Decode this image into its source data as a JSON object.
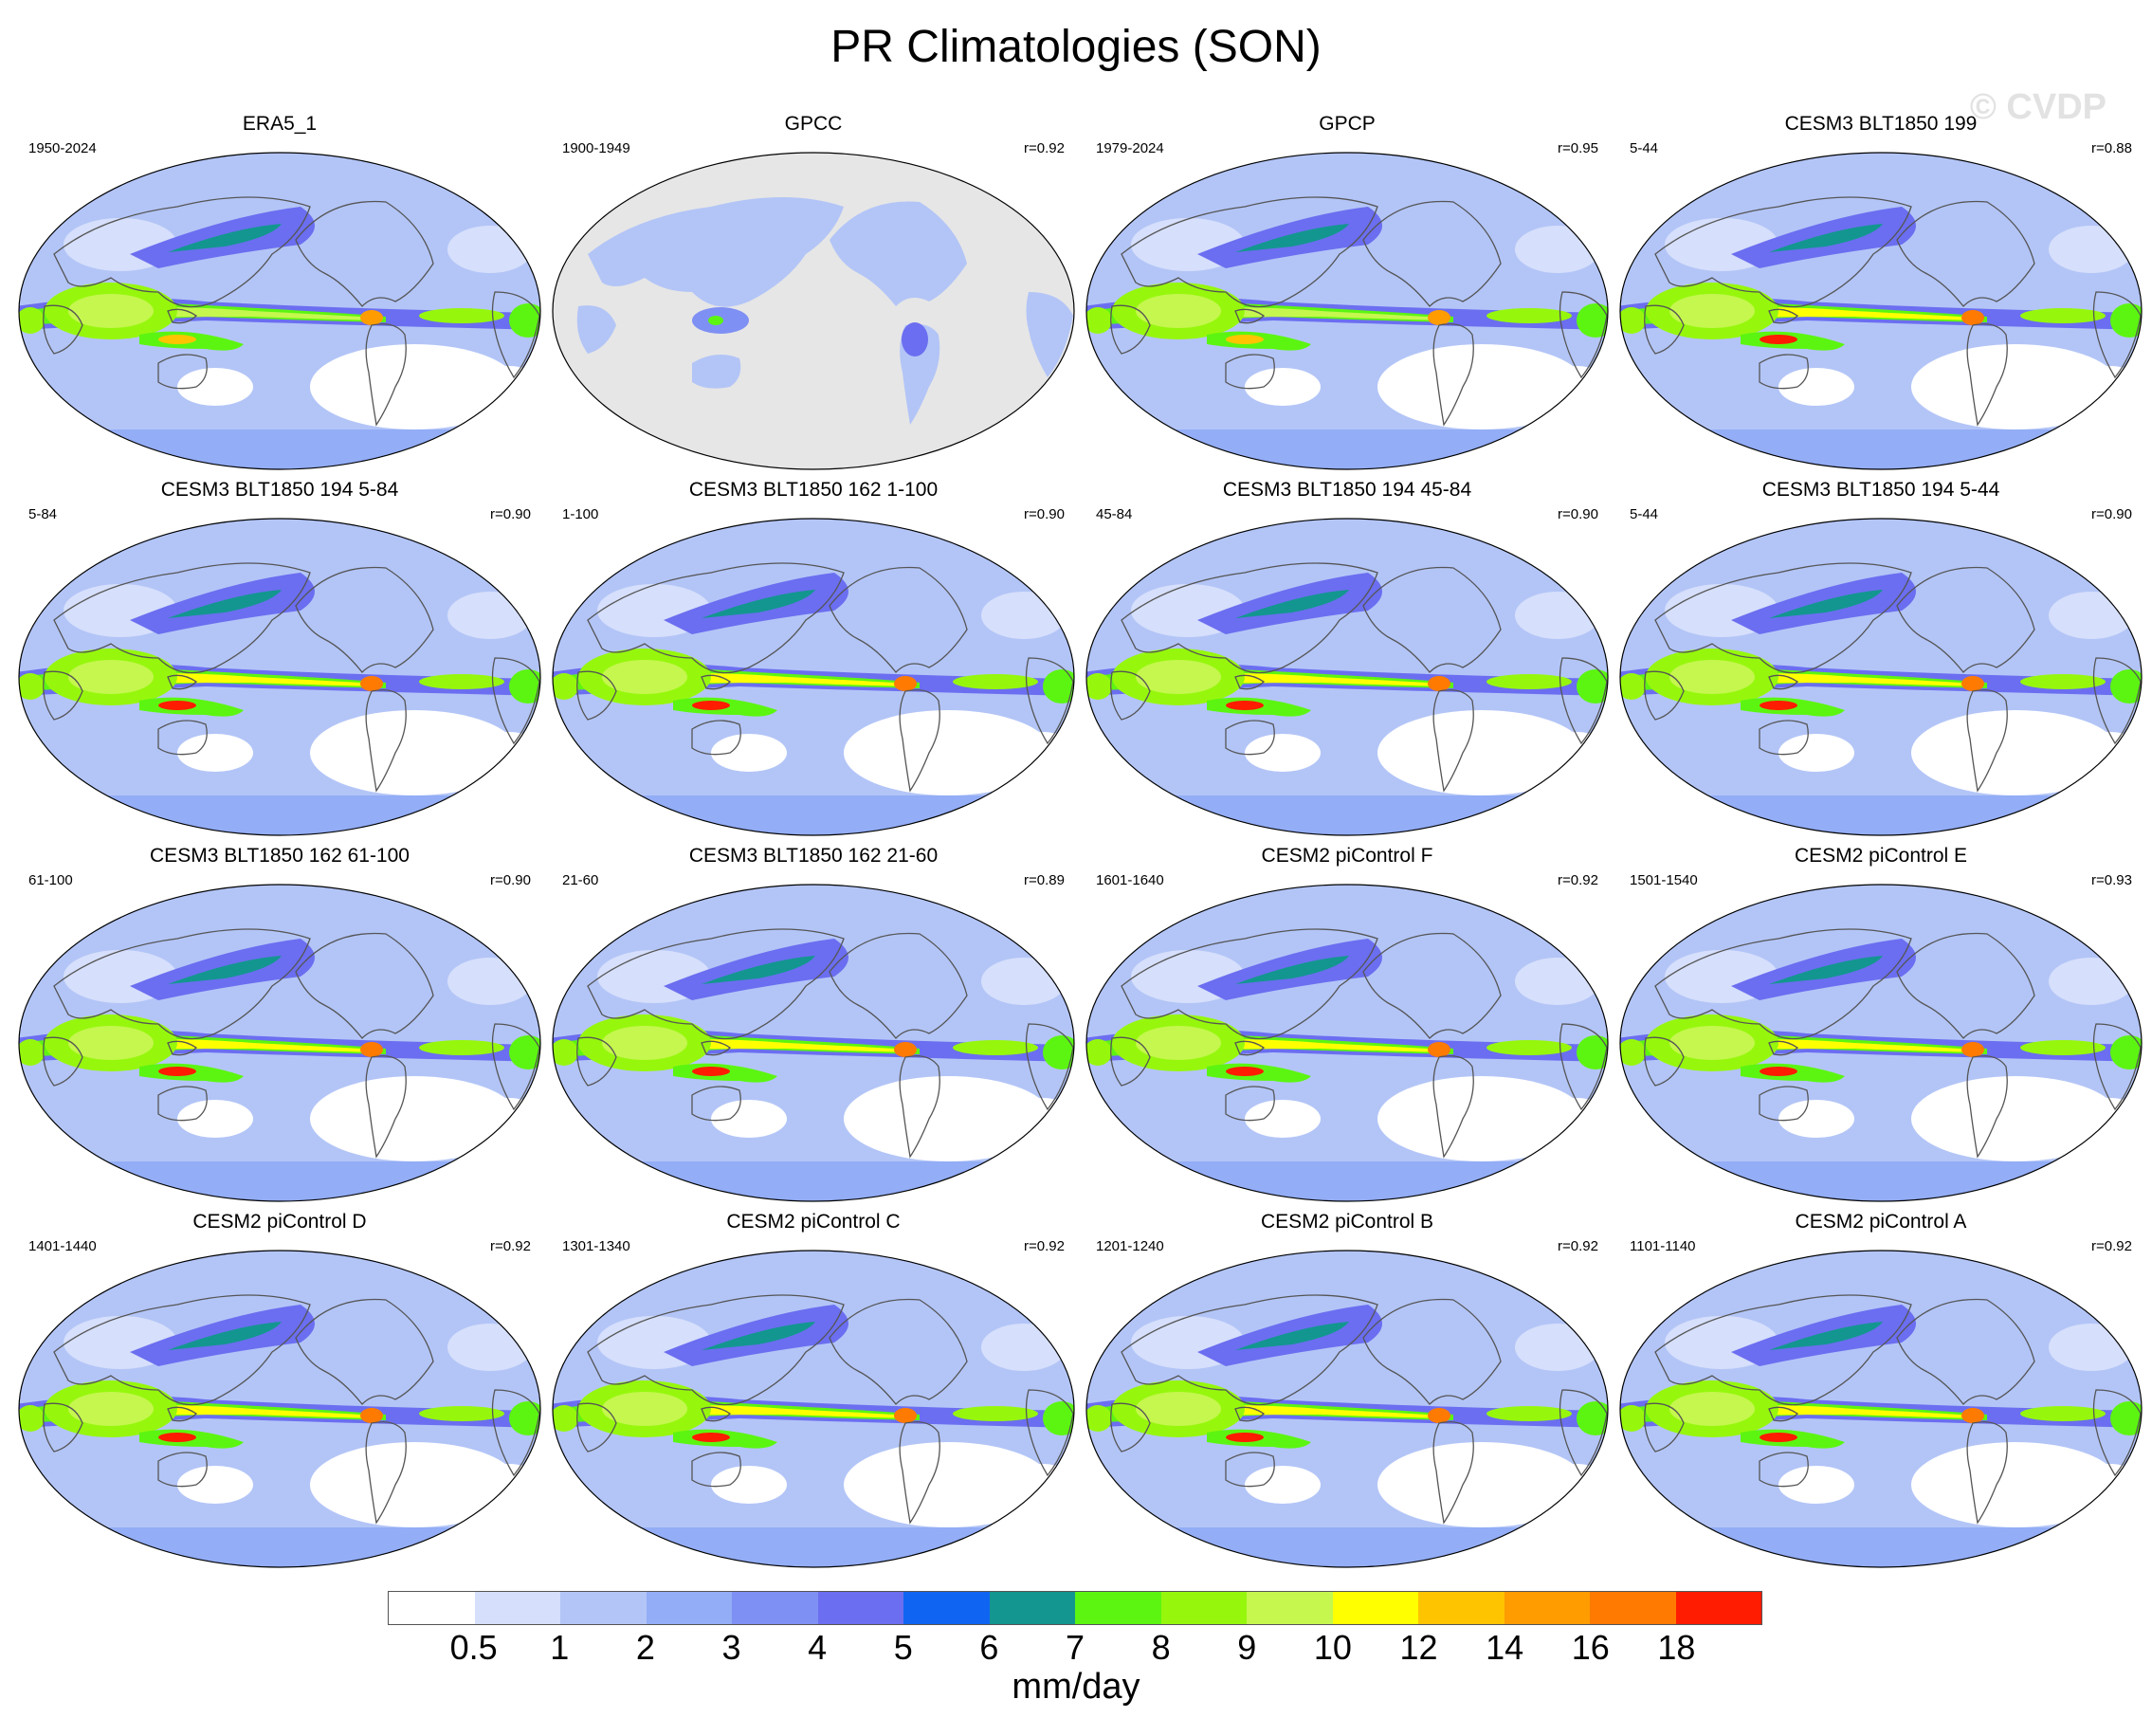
{
  "title": "PR Climatologies (SON)",
  "watermark": "© CVDP",
  "panels": [
    {
      "title": "ERA5_1",
      "period": "1950-2024",
      "r": "",
      "style": "obs"
    },
    {
      "title": "GPCC",
      "period": "1900-1949",
      "r": "r=0.92",
      "style": "land"
    },
    {
      "title": "GPCP",
      "period": "1979-2024",
      "r": "r=0.95",
      "style": "obs"
    },
    {
      "title": "CESM3 BLT1850 199",
      "period": "5-44",
      "r": "r=0.88",
      "style": "model"
    },
    {
      "title": "CESM3 BLT1850 194 5-84",
      "period": "5-84",
      "r": "r=0.90",
      "style": "model"
    },
    {
      "title": "CESM3 BLT1850 162 1-100",
      "period": "1-100",
      "r": "r=0.90",
      "style": "model"
    },
    {
      "title": "CESM3 BLT1850 194 45-84",
      "period": "45-84",
      "r": "r=0.90",
      "style": "model"
    },
    {
      "title": "CESM3 BLT1850 194 5-44",
      "period": "5-44",
      "r": "r=0.90",
      "style": "model"
    },
    {
      "title": "CESM3 BLT1850 162 61-100",
      "period": "61-100",
      "r": "r=0.90",
      "style": "model"
    },
    {
      "title": "CESM3 BLT1850 162 21-60",
      "period": "21-60",
      "r": "r=0.89",
      "style": "model"
    },
    {
      "title": "CESM2 piControl F",
      "period": "1601-1640",
      "r": "r=0.92",
      "style": "model2"
    },
    {
      "title": "CESM2 piControl E",
      "period": "1501-1540",
      "r": "r=0.93",
      "style": "model2"
    },
    {
      "title": "CESM2 piControl D",
      "period": "1401-1440",
      "r": "r=0.92",
      "style": "model2"
    },
    {
      "title": "CESM2 piControl C",
      "period": "1301-1340",
      "r": "r=0.92",
      "style": "model2"
    },
    {
      "title": "CESM2 piControl B",
      "period": "1201-1240",
      "r": "r=0.92",
      "style": "model2"
    },
    {
      "title": "CESM2 piControl A",
      "period": "1101-1140",
      "r": "r=0.92",
      "style": "model2"
    }
  ],
  "colorbar": {
    "colors": [
      "#ffffff",
      "#d6dffb",
      "#b3c5f7",
      "#93adf6",
      "#7f90f4",
      "#6b6ef0",
      "#1064f2",
      "#139690",
      "#5cf511",
      "#96f70d",
      "#c5f74e",
      "#ffff00",
      "#ffc400",
      "#ff9c00",
      "#ff7a00",
      "#ff1c00"
    ],
    "ticks": [
      "0.5",
      "1",
      "2",
      "3",
      "4",
      "5",
      "6",
      "7",
      "8",
      "9",
      "10",
      "12",
      "14",
      "16",
      "18"
    ],
    "units": "mm/day"
  }
}
